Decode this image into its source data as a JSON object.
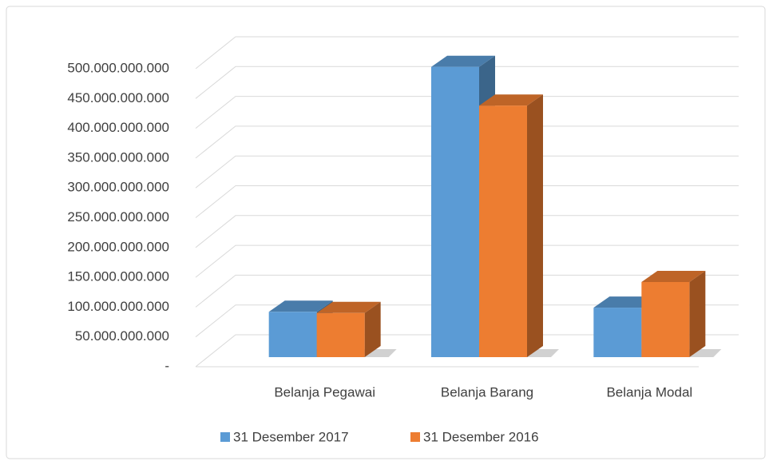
{
  "chart_data": {
    "type": "bar3d",
    "categories": [
      "Belanja Pegawai",
      "Belanja Barang",
      "Belanja Modal"
    ],
    "series": [
      {
        "name": "31 Desember 2017",
        "color": "#5b9bd5",
        "values": [
          76000000000,
          487000000000,
          83000000000
        ]
      },
      {
        "name": "31 Desember 2016",
        "color": "#ed7d31",
        "values": [
          74000000000,
          422000000000,
          126000000000
        ]
      }
    ],
    "ylim": [
      0,
      500000000000
    ],
    "yticks": [
      {
        "value": 0,
        "label": "-"
      },
      {
        "value": 50000000000,
        "label": "50.000.000.000"
      },
      {
        "value": 100000000000,
        "label": "100.000.000.000"
      },
      {
        "value": 150000000000,
        "label": "150.000.000.000"
      },
      {
        "value": 200000000000,
        "label": "200.000.000.000"
      },
      {
        "value": 250000000000,
        "label": "250.000.000.000"
      },
      {
        "value": 300000000000,
        "label": "300.000.000.000"
      },
      {
        "value": 350000000000,
        "label": "350.000.000.000"
      },
      {
        "value": 400000000000,
        "label": "400.000.000.000"
      },
      {
        "value": 450000000000,
        "label": "450.000.000.000"
      },
      {
        "value": 500000000000,
        "label": "500.000.000.000"
      }
    ],
    "grid": true,
    "legend": "bottom"
  }
}
